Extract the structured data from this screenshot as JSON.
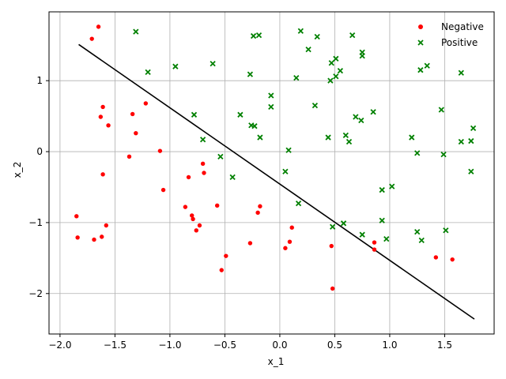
{
  "chart_data": {
    "type": "scatter",
    "title": "",
    "xlabel": "x_1",
    "ylabel": "x_2",
    "xlim": [
      -2.1,
      1.95
    ],
    "ylim": [
      -2.57,
      1.97
    ],
    "xticks": [
      -2.0,
      -1.5,
      -1.0,
      -0.5,
      0.0,
      0.5,
      1.0,
      1.5
    ],
    "xtick_labels": [
      "−2.0",
      "−1.5",
      "−1.0",
      "−0.5",
      "0.0",
      "0.5",
      "1.0",
      "1.5"
    ],
    "yticks": [
      -2,
      -1,
      0,
      1
    ],
    "ytick_labels": [
      "−2",
      "−1",
      "0",
      "1"
    ],
    "grid": true,
    "legend_position": "top-right",
    "colors": {
      "negative": "#ff0000",
      "positive": "#008000",
      "boundary": "#000000",
      "grid": "#b0b0b0"
    },
    "decision_boundary": {
      "x": [
        -1.83,
        1.77
      ],
      "y": [
        1.51,
        -2.36
      ]
    },
    "series": [
      {
        "name": "Negative",
        "marker": "circle",
        "points": [
          [
            -1.65,
            1.76
          ],
          [
            -1.71,
            1.59
          ],
          [
            -1.61,
            0.63
          ],
          [
            -1.63,
            0.49
          ],
          [
            -1.56,
            0.37
          ],
          [
            -1.34,
            0.53
          ],
          [
            -1.31,
            0.26
          ],
          [
            -1.22,
            0.68
          ],
          [
            -1.09,
            0.01
          ],
          [
            -1.37,
            -0.07
          ],
          [
            -1.61,
            -0.32
          ],
          [
            -1.06,
            -0.54
          ],
          [
            -1.85,
            -0.91
          ],
          [
            -1.84,
            -1.21
          ],
          [
            -1.69,
            -1.24
          ],
          [
            -1.62,
            -1.2
          ],
          [
            -1.58,
            -1.04
          ],
          [
            -0.83,
            -0.36
          ],
          [
            -0.7,
            -0.17
          ],
          [
            -0.69,
            -0.3
          ],
          [
            -0.86,
            -0.78
          ],
          [
            -0.8,
            -0.9
          ],
          [
            -0.79,
            -0.95
          ],
          [
            -0.73,
            -1.04
          ],
          [
            -0.76,
            -1.11
          ],
          [
            -0.57,
            -0.76
          ],
          [
            -0.53,
            -1.67
          ],
          [
            -0.49,
            -1.47
          ],
          [
            -0.27,
            -1.29
          ],
          [
            -0.2,
            -0.86
          ],
          [
            -0.18,
            -0.77
          ],
          [
            0.05,
            -1.36
          ],
          [
            0.09,
            -1.27
          ],
          [
            0.11,
            -1.07
          ],
          [
            0.47,
            -1.33
          ],
          [
            0.48,
            -1.93
          ],
          [
            0.86,
            -1.28
          ],
          [
            0.86,
            -1.38
          ],
          [
            1.42,
            -1.49
          ],
          [
            1.57,
            -1.52
          ]
        ]
      },
      {
        "name": "Positive",
        "marker": "x",
        "points": [
          [
            -1.31,
            1.69
          ],
          [
            -1.2,
            1.12
          ],
          [
            -0.95,
            1.2
          ],
          [
            -0.61,
            1.24
          ],
          [
            -0.27,
            1.09
          ],
          [
            -0.24,
            1.63
          ],
          [
            -0.19,
            1.64
          ],
          [
            0.19,
            1.7
          ],
          [
            0.34,
            1.62
          ],
          [
            0.26,
            1.44
          ],
          [
            0.15,
            1.04
          ],
          [
            0.47,
            1.25
          ],
          [
            0.51,
            1.31
          ],
          [
            0.46,
            1.0
          ],
          [
            0.51,
            1.06
          ],
          [
            0.55,
            1.14
          ],
          [
            0.66,
            1.64
          ],
          [
            0.75,
            1.4
          ],
          [
            0.75,
            1.35
          ],
          [
            -0.08,
            0.79
          ],
          [
            -0.08,
            0.63
          ],
          [
            -0.36,
            0.52
          ],
          [
            -0.26,
            0.37
          ],
          [
            -0.23,
            0.36
          ],
          [
            -0.18,
            0.2
          ],
          [
            0.32,
            0.65
          ],
          [
            0.69,
            0.49
          ],
          [
            0.74,
            0.44
          ],
          [
            0.85,
            0.56
          ],
          [
            -0.78,
            0.52
          ],
          [
            -0.7,
            0.17
          ],
          [
            0.44,
            0.2
          ],
          [
            0.6,
            0.23
          ],
          [
            0.63,
            0.14
          ],
          [
            0.08,
            0.02
          ],
          [
            -0.54,
            -0.07
          ],
          [
            -0.43,
            -0.36
          ],
          [
            0.05,
            -0.28
          ],
          [
            0.17,
            -0.73
          ],
          [
            0.48,
            -1.06
          ],
          [
            0.58,
            -1.01
          ],
          [
            0.75,
            -1.17
          ],
          [
            0.93,
            -0.54
          ],
          [
            0.93,
            -0.97
          ],
          [
            1.02,
            -0.49
          ],
          [
            0.97,
            -1.23
          ],
          [
            1.2,
            0.2
          ],
          [
            1.25,
            -0.02
          ],
          [
            1.28,
            1.15
          ],
          [
            1.34,
            1.21
          ],
          [
            1.47,
            0.59
          ],
          [
            1.49,
            -0.04
          ],
          [
            1.25,
            -1.13
          ],
          [
            1.29,
            -1.25
          ],
          [
            1.51,
            -1.11
          ],
          [
            1.65,
            1.11
          ],
          [
            1.65,
            0.14
          ],
          [
            1.74,
            0.15
          ],
          [
            1.74,
            -0.28
          ],
          [
            1.76,
            0.33
          ]
        ]
      }
    ]
  }
}
